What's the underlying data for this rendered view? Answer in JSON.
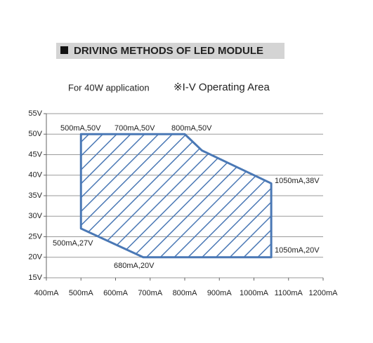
{
  "chart_data": {
    "type": "area",
    "title": "DRIVING METHODS OF LED MODULE",
    "subtitle": "For 40W application",
    "note": "※I-V Operating Area",
    "x": [
      500,
      700,
      800,
      850,
      950,
      1050,
      1050,
      680,
      500
    ],
    "y": [
      50,
      50,
      50,
      46,
      42,
      38,
      20,
      20,
      27
    ],
    "color": "#4a78b5",
    "annotations": [
      "500mA,50V",
      "700mA,50V",
      "800mA,50V",
      "1050mA,38V",
      "1050mA,20V",
      "680mA,20V",
      "500mA,27V"
    ],
    "xlim": [
      400,
      1200
    ],
    "xticks": [
      {
        "value": 400,
        "label": "400mA"
      },
      {
        "value": 500,
        "label": "500mA"
      },
      {
        "value": 600,
        "label": "600mA"
      },
      {
        "value": 700,
        "label": "700mA"
      },
      {
        "value": 800,
        "label": "800mA"
      },
      {
        "value": 900,
        "label": "900mA"
      },
      {
        "value": 1000,
        "label": "1000mA"
      },
      {
        "value": 1100,
        "label": "1100mA"
      },
      {
        "value": 1200,
        "label": "1200mA"
      }
    ],
    "ylim": [
      15,
      55
    ],
    "yticks": [
      {
        "value": 15,
        "label": "15V"
      },
      {
        "value": 20,
        "label": "20V"
      },
      {
        "value": 25,
        "label": "25V"
      },
      {
        "value": 30,
        "label": "30V"
      },
      {
        "value": 35,
        "label": "35V"
      },
      {
        "value": 40,
        "label": "40V"
      },
      {
        "value": 45,
        "label": "45V"
      },
      {
        "value": 50,
        "label": "50V"
      },
      {
        "value": 55,
        "label": "55V"
      }
    ],
    "grid": true
  }
}
